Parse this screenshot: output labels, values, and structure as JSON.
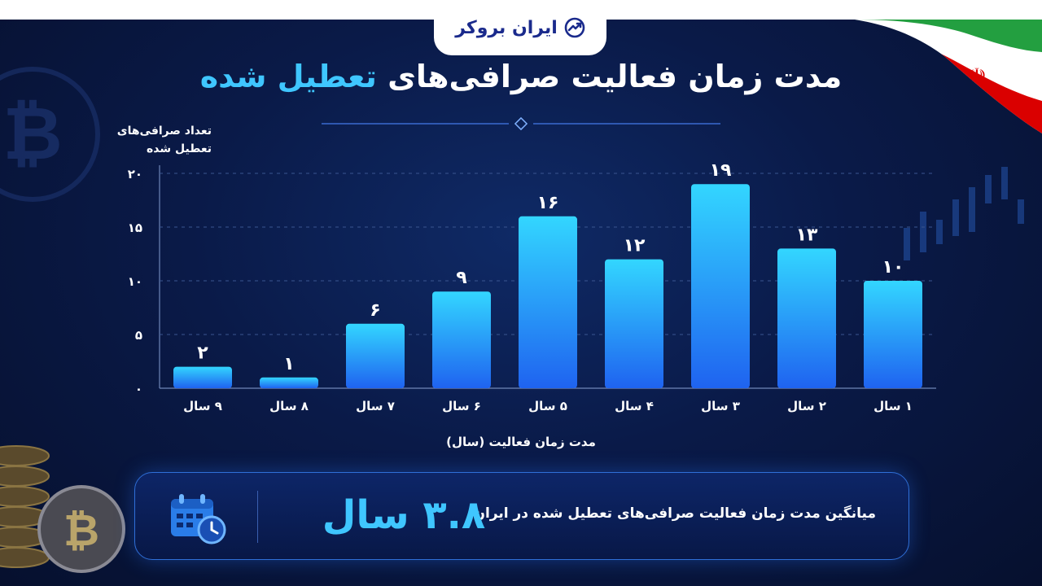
{
  "brand": {
    "name": "ایران بروکر"
  },
  "title": {
    "main": "مدت زمان فعالیت صرافی‌های ",
    "highlight": "تعطیل شده"
  },
  "chart_data": {
    "type": "bar",
    "ylabel": "تعداد صرافی‌های تعطیل شده",
    "xlabel": "مدت زمان فعالیت (سال)",
    "ylim": [
      0,
      20
    ],
    "yticks": [
      0,
      5,
      10,
      15,
      20
    ],
    "ytick_labels": [
      "۰",
      "۵",
      "۱۰",
      "۱۵",
      "۲۰"
    ],
    "categories": [
      "۱ سال",
      "۲ سال",
      "۳ سال",
      "۴ سال",
      "۵ سال",
      "۶ سال",
      "۷ سال",
      "۸ سال",
      "۹ سال"
    ],
    "values": [
      10,
      13,
      19,
      12,
      16,
      9,
      6,
      1,
      2
    ],
    "value_labels": [
      "۱۰",
      "۱۳",
      "۱۹",
      "۱۲",
      "۱۶",
      "۹",
      "۶",
      "۱",
      "۲"
    ],
    "grid": true,
    "bar_color_top": "#33d6ff",
    "bar_color_bottom": "#1f63f0"
  },
  "summary": {
    "label": "میانگین مدت زمان فعالیت صرافی‌های تعطیل شده در ایران:",
    "value": "۳.۸ سال",
    "icon": "calendar-clock-icon"
  },
  "colors": {
    "accent": "#3fc6ff",
    "background": "#0a1a48",
    "brand": "#1a2a8c"
  }
}
